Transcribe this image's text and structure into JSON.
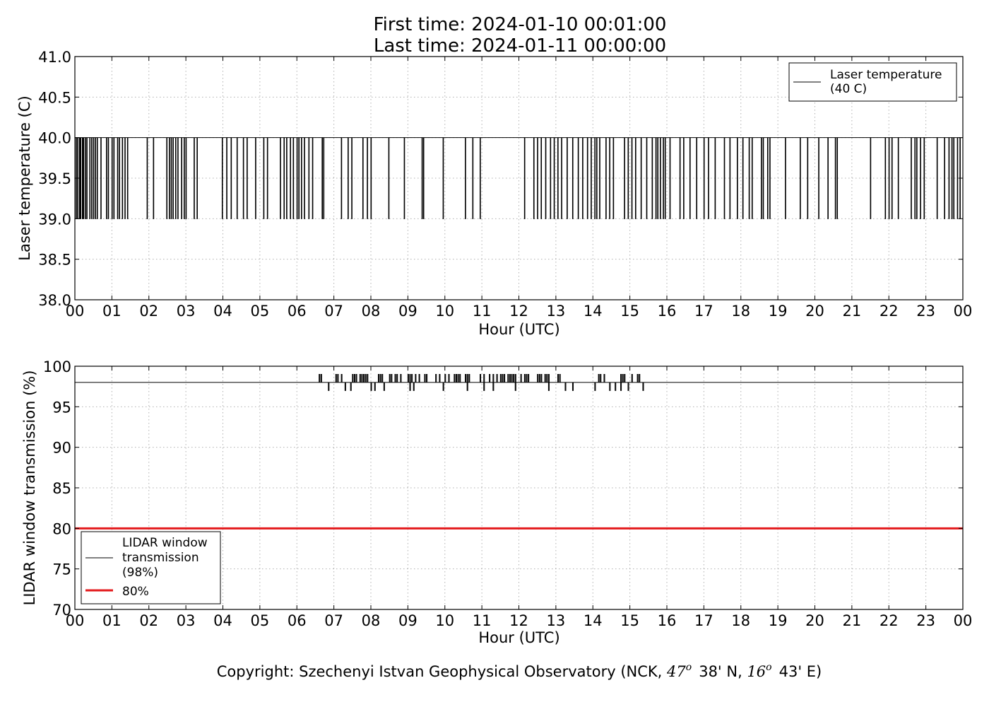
{
  "header": {
    "first_time": "First time: 2024-01-10 00:01:00",
    "last_time": "Last time: 2024-01-11 00:00:00"
  },
  "footer": {
    "prefix": "Copyright: Szechenyi Istvan Geophysical Observatory (NCK, ",
    "lat_deg": "47",
    "lat_min": "38' N, ",
    "lon_deg": "16",
    "lon_min": "43' E)"
  },
  "colors": {
    "line": "#000000",
    "threshold": "#e31a1c",
    "grid": "#b0b0b0"
  },
  "chart_data": [
    {
      "type": "line",
      "xlabel": "Hour (UTC)",
      "ylabel": "Laser temperature (C)",
      "xlim": [
        0,
        24
      ],
      "ylim": [
        38.0,
        41.0
      ],
      "xticks": [
        0,
        1,
        2,
        3,
        4,
        5,
        6,
        7,
        8,
        9,
        10,
        11,
        12,
        13,
        14,
        15,
        16,
        17,
        18,
        19,
        20,
        21,
        22,
        23,
        24
      ],
      "xtick_labels": [
        "00",
        "01",
        "02",
        "03",
        "04",
        "05",
        "06",
        "07",
        "08",
        "09",
        "10",
        "11",
        "12",
        "13",
        "14",
        "15",
        "16",
        "17",
        "18",
        "19",
        "20",
        "21",
        "22",
        "23",
        "00"
      ],
      "yticks": [
        38.0,
        38.5,
        39.0,
        39.5,
        40.0,
        40.5,
        41.0
      ],
      "ytick_labels": [
        "38.0",
        "38.5",
        "39.0",
        "39.5",
        "40.0",
        "40.5",
        "41.0"
      ],
      "grid": true,
      "legend_position": "top-right",
      "series": [
        {
          "name": "Laser temperature",
          "legend_sub": "(40 C)",
          "base": 40.0,
          "low": 39.0,
          "dips_hours": [
            0.03,
            0.07,
            0.12,
            0.15,
            0.2,
            0.23,
            0.28,
            0.32,
            0.4,
            0.45,
            0.5,
            0.55,
            0.6,
            0.7,
            0.85,
            0.9,
            1.0,
            1.05,
            1.15,
            1.2,
            1.28,
            1.35,
            1.42,
            1.95,
            2.12,
            2.48,
            2.55,
            2.6,
            2.65,
            2.72,
            2.78,
            2.88,
            2.95,
            3.0,
            3.22,
            3.3,
            3.98,
            4.1,
            4.22,
            4.38,
            4.55,
            4.65,
            4.88,
            5.1,
            5.2,
            5.55,
            5.65,
            5.72,
            5.82,
            5.9,
            6.0,
            6.05,
            6.12,
            6.2,
            6.32,
            6.42,
            6.68,
            6.72,
            7.2,
            7.38,
            7.48,
            7.78,
            7.9,
            8.0,
            8.48,
            8.9,
            9.38,
            9.42,
            9.95,
            10.55,
            10.75,
            10.95,
            12.15,
            12.4,
            12.5,
            12.6,
            12.72,
            12.85,
            12.95,
            13.05,
            13.15,
            13.3,
            13.45,
            13.6,
            13.72,
            13.85,
            13.95,
            14.05,
            14.1,
            14.18,
            14.35,
            14.45,
            14.55,
            14.85,
            14.95,
            15.05,
            15.15,
            15.3,
            15.45,
            15.6,
            15.7,
            15.75,
            15.82,
            15.9,
            15.95,
            16.08,
            16.35,
            16.45,
            16.62,
            16.8,
            17.0,
            17.12,
            17.3,
            17.55,
            17.7,
            17.9,
            18.05,
            18.22,
            18.3,
            18.55,
            18.6,
            18.72,
            18.78,
            19.2,
            19.6,
            19.8,
            20.1,
            20.35,
            20.55,
            20.6,
            21.5,
            21.9,
            22.0,
            22.08,
            22.25,
            22.6,
            22.7,
            22.75,
            22.85,
            22.95,
            23.3,
            23.5,
            23.62,
            23.7,
            23.75,
            23.85,
            23.92
          ]
        }
      ]
    },
    {
      "type": "line",
      "xlabel": "Hour (UTC)",
      "ylabel": "LIDAR window transmission (%)",
      "xlim": [
        0,
        24
      ],
      "ylim": [
        70,
        100
      ],
      "xticks": [
        0,
        1,
        2,
        3,
        4,
        5,
        6,
        7,
        8,
        9,
        10,
        11,
        12,
        13,
        14,
        15,
        16,
        17,
        18,
        19,
        20,
        21,
        22,
        23,
        24
      ],
      "xtick_labels": [
        "00",
        "01",
        "02",
        "03",
        "04",
        "05",
        "06",
        "07",
        "08",
        "09",
        "10",
        "11",
        "12",
        "13",
        "14",
        "15",
        "16",
        "17",
        "18",
        "19",
        "20",
        "21",
        "22",
        "23",
        "00"
      ],
      "yticks": [
        70,
        75,
        80,
        85,
        90,
        95,
        100
      ],
      "ytick_labels": [
        "70",
        "75",
        "80",
        "85",
        "90",
        "95",
        "100"
      ],
      "grid": true,
      "legend_position": "bottom-left",
      "series": [
        {
          "name": "LIDAR window transmission",
          "legend_lines": [
            "LIDAR window",
            "transmission",
            "(98%)"
          ],
          "base": 98,
          "high": 99,
          "low": 97,
          "spikes_up_hours": [
            6.6,
            6.65,
            7.05,
            7.1,
            7.2,
            7.5,
            7.55,
            7.6,
            7.7,
            7.75,
            7.8,
            7.85,
            7.9,
            8.2,
            8.25,
            8.3,
            8.5,
            8.55,
            8.65,
            8.7,
            8.8,
            9.0,
            9.05,
            9.1,
            9.2,
            9.3,
            9.45,
            9.5,
            9.75,
            9.85,
            10.0,
            10.1,
            10.25,
            10.3,
            10.35,
            10.4,
            10.55,
            10.6,
            10.65,
            10.95,
            11.05,
            11.2,
            11.3,
            11.4,
            11.5,
            11.55,
            11.6,
            11.7,
            11.75,
            11.8,
            11.85,
            11.9,
            12.05,
            12.15,
            12.2,
            12.25,
            12.5,
            12.55,
            12.6,
            12.7,
            12.75,
            12.8,
            13.05,
            13.1,
            14.15,
            14.2,
            14.3,
            14.75,
            14.8,
            14.85,
            15.05,
            15.2,
            15.25
          ],
          "spikes_down_hours": [
            6.85,
            7.3,
            7.45,
            8.0,
            8.1,
            8.35,
            9.05,
            9.15,
            9.95,
            10.6,
            11.05,
            11.3,
            11.9,
            12.8,
            13.25,
            13.45,
            14.05,
            14.45,
            14.6,
            14.75,
            14.95,
            15.35
          ]
        },
        {
          "name": "80%",
          "value": 80,
          "color": "#e31a1c"
        }
      ]
    }
  ]
}
